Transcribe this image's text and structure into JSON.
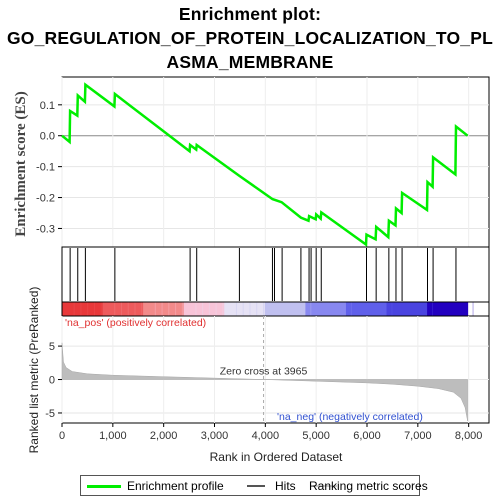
{
  "title_lines": [
    "Enrichment plot:",
    "GO_REGULATION_OF_PROTEIN_LOCALIZATION_TO_PL",
    "ASMA_MEMBRANE"
  ],
  "chart_data": {
    "type": "line",
    "ylabel_top": "Enrichment score (ES)",
    "ylabel_bottom": "Ranked list metric (PreRanked)",
    "xlabel": "Rank in Ordered Dataset",
    "xlim": [
      0,
      8400
    ],
    "x_ticks": [
      0,
      1000,
      2000,
      3000,
      4000,
      5000,
      6000,
      7000,
      8000
    ],
    "x_tick_labels": [
      "0",
      "1,000",
      "2,000",
      "3,000",
      "4,000",
      "5,000",
      "6,000",
      "7,000",
      "8,000"
    ],
    "es_ylim": [
      -0.36,
      0.19
    ],
    "es_ticks": [
      -0.3,
      -0.2,
      -0.1,
      0.0,
      0.1
    ],
    "es_tick_labels": [
      "-0.3",
      "-0.2",
      "-0.1",
      "0.0",
      "0.1"
    ],
    "enrichment_profile": [
      [
        0,
        0.0
      ],
      [
        150,
        -0.02
      ],
      [
        160,
        0.08
      ],
      [
        300,
        0.065
      ],
      [
        310,
        0.13
      ],
      [
        450,
        0.11
      ],
      [
        460,
        0.165
      ],
      [
        1030,
        0.095
      ],
      [
        1040,
        0.135
      ],
      [
        2510,
        -0.05
      ],
      [
        2520,
        -0.03
      ],
      [
        2640,
        -0.045
      ],
      [
        2650,
        -0.03
      ],
      [
        3490,
        -0.13
      ],
      [
        4140,
        -0.205
      ],
      [
        4320,
        -0.215
      ],
      [
        4700,
        -0.265
      ],
      [
        4850,
        -0.275
      ],
      [
        4860,
        -0.26
      ],
      [
        4990,
        -0.27
      ],
      [
        5000,
        -0.255
      ],
      [
        5090,
        -0.268
      ],
      [
        5100,
        -0.248
      ],
      [
        5980,
        -0.352
      ],
      [
        5990,
        -0.32
      ],
      [
        6170,
        -0.335
      ],
      [
        6180,
        -0.295
      ],
      [
        6420,
        -0.328
      ],
      [
        6430,
        -0.275
      ],
      [
        6560,
        -0.29
      ],
      [
        6570,
        -0.235
      ],
      [
        6680,
        -0.25
      ],
      [
        6690,
        -0.185
      ],
      [
        7180,
        -0.24
      ],
      [
        7190,
        -0.15
      ],
      [
        7290,
        -0.165
      ],
      [
        7300,
        -0.07
      ],
      [
        7740,
        -0.125
      ],
      [
        7750,
        0.03
      ],
      [
        7980,
        0.0
      ]
    ],
    "hit_positions": [
      160,
      310,
      460,
      1040,
      2520,
      2650,
      3490,
      4140,
      4180,
      4330,
      4700,
      4860,
      4900,
      5000,
      5100,
      5990,
      6180,
      6430,
      6570,
      6690,
      7190,
      7300,
      7750
    ],
    "rank_metric_ylim": [
      -6.5,
      9.5
    ],
    "rank_metric_ticks": [
      -5,
      0,
      5
    ],
    "rank_metric_tick_labels": [
      "-5",
      "0",
      "5"
    ],
    "rank_metric_curve": [
      [
        0,
        5.5
      ],
      [
        30,
        2.6
      ],
      [
        80,
        1.8
      ],
      [
        200,
        1.2
      ],
      [
        500,
        0.85
      ],
      [
        1000,
        0.65
      ],
      [
        2000,
        0.42
      ],
      [
        3000,
        0.22
      ],
      [
        3965,
        0.0
      ],
      [
        5000,
        -0.25
      ],
      [
        6000,
        -0.5
      ],
      [
        6500,
        -0.7
      ],
      [
        7000,
        -1.0
      ],
      [
        7400,
        -1.35
      ],
      [
        7700,
        -1.9
      ],
      [
        7850,
        -2.8
      ],
      [
        7930,
        -4.2
      ],
      [
        7980,
        -6.2
      ]
    ],
    "zero_cross_rank": 3965,
    "annotations": {
      "zero_cross": "Zero cross at 3965",
      "na_pos": "'na_pos' (positively correlated)",
      "na_neg": "'na_neg' (negatively correlated)"
    },
    "heatmap_bar_colors": [
      "#e8383a",
      "#ee5a5c",
      "#f28a8a",
      "#f8c4d8",
      "#e6e2f5",
      "#c0c0f0",
      "#8888f0",
      "#6060ea",
      "#4a44e0",
      "#2200c0"
    ],
    "legend": [
      {
        "label": "Enrichment profile",
        "color": "#00ee00"
      },
      {
        "label": "Hits",
        "color": "#555555"
      },
      {
        "label": "Ranking metric scores",
        "color": "#cccccc"
      }
    ],
    "line_color": "#00ee00"
  }
}
